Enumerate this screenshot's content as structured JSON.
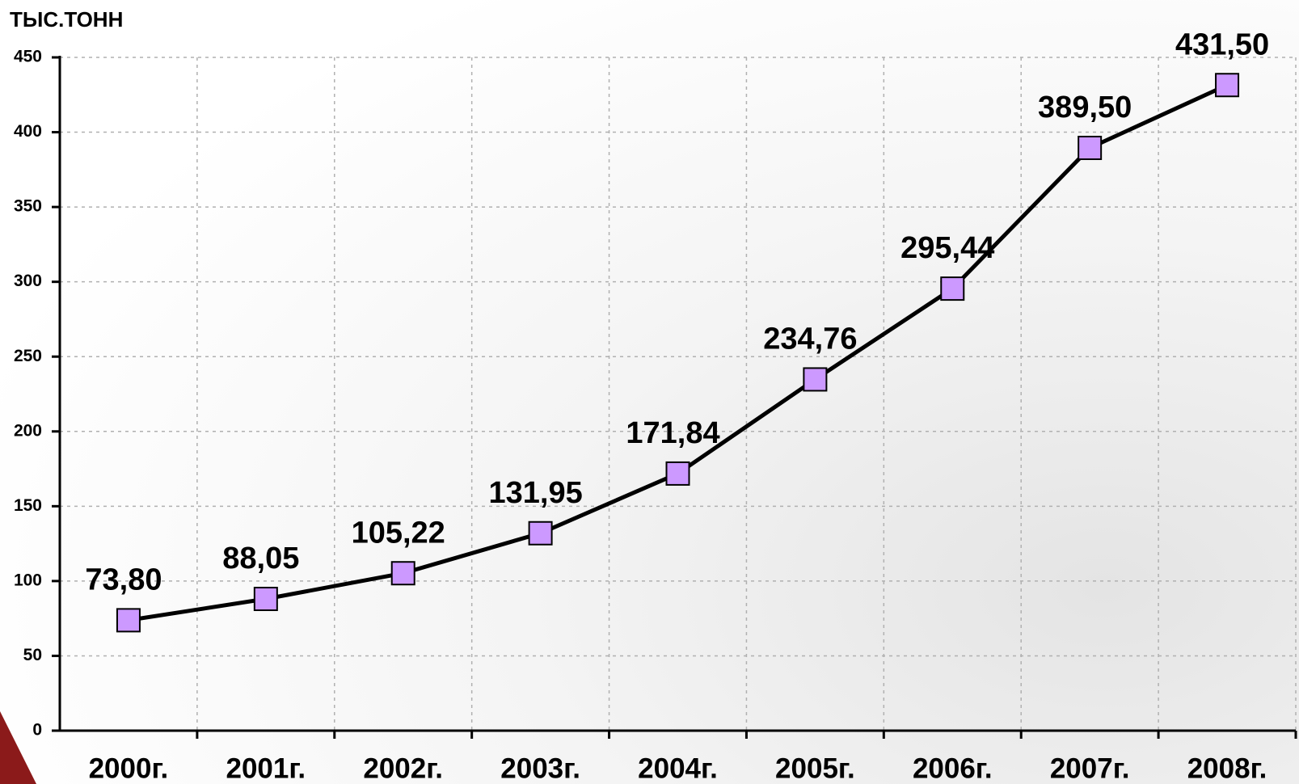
{
  "chart_data": {
    "type": "line",
    "y_axis_label": "ТЫС.ТОНН",
    "categories": [
      "2000г.",
      "2001г.",
      "2002г.",
      "2003г.",
      "2004г.",
      "2005г.",
      "2006г.",
      "2007г.",
      "2008г."
    ],
    "series": [
      {
        "color": "#cc99ff",
        "line_color": "#000000",
        "values": [
          73.8,
          88.05,
          105.22,
          131.95,
          171.84,
          234.76,
          295.44,
          389.5,
          431.5
        ],
        "value_labels": [
          "73,80",
          "88,05",
          "105,22",
          "131,95",
          "171,84",
          "234,76",
          "295,44",
          "389,50",
          "431,50"
        ]
      }
    ],
    "ylim": [
      0,
      450
    ],
    "yticks": [
      0,
      50,
      100,
      150,
      200,
      250,
      300,
      350,
      400,
      450
    ],
    "grid": true
  }
}
